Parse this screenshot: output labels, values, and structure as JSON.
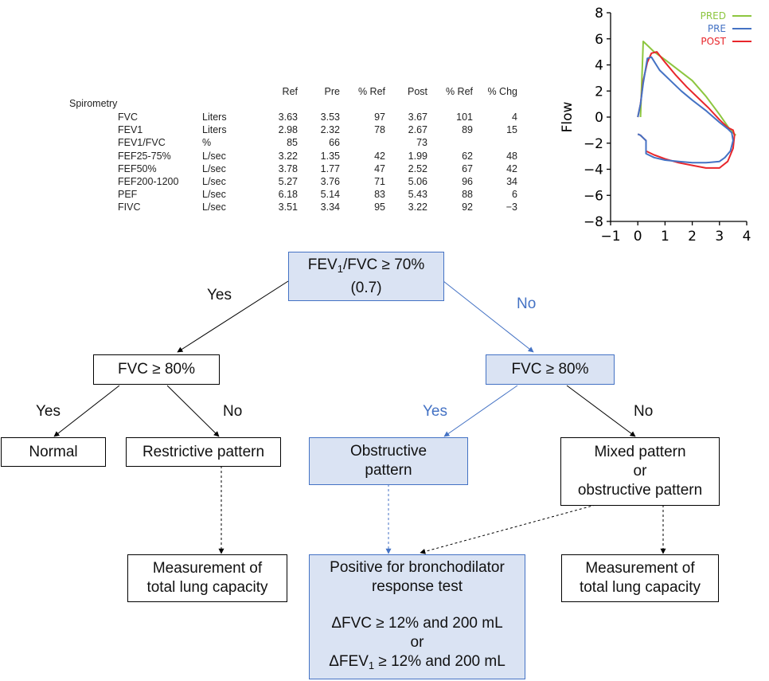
{
  "table": {
    "section_label": "Spirometry",
    "headers": [
      "Ref",
      "Pre",
      "% Ref",
      "Post",
      "% Ref",
      "% Chg"
    ],
    "rows": [
      {
        "param": "FVC",
        "unit": "Liters",
        "ref": "3.63",
        "pre": "3.53",
        "pref": "97",
        "post": "3.67",
        "postref": "101",
        "chg": "4"
      },
      {
        "param": "FEV1",
        "unit": "Liters",
        "ref": "2.98",
        "pre": "2.32",
        "pref": "78",
        "post": "2.67",
        "postref": "89",
        "chg": "15"
      },
      {
        "param": "FEV1/FVC",
        "unit": "%",
        "ref": "85",
        "pre": "66",
        "pref": "",
        "post": "73",
        "postref": "",
        "chg": ""
      },
      {
        "param": "FEF25-75%",
        "unit": "L/sec",
        "ref": "3.22",
        "pre": "1.35",
        "pref": "42",
        "post": "1.99",
        "postref": "62",
        "chg": "48"
      },
      {
        "param": "FEF50%",
        "unit": "L/sec",
        "ref": "3.78",
        "pre": "1.77",
        "pref": "47",
        "post": "2.52",
        "postref": "67",
        "chg": "42"
      },
      {
        "param": "FEF200-1200",
        "unit": "L/sec",
        "ref": "5.27",
        "pre": "3.76",
        "pref": "71",
        "post": "5.06",
        "postref": "96",
        "chg": "34"
      },
      {
        "param": "PEF",
        "unit": "L/sec",
        "ref": "6.18",
        "pre": "5.14",
        "pref": "83",
        "post": "5.43",
        "postref": "88",
        "chg": "6"
      },
      {
        "param": "FIVC",
        "unit": "L/sec",
        "ref": "3.51",
        "pre": "3.34",
        "pref": "95",
        "post": "3.22",
        "postref": "92",
        "chg": "−3"
      }
    ]
  },
  "chart_data": {
    "type": "line",
    "ylabel": "Flow",
    "xlabel": "",
    "xlim": [
      -1,
      4
    ],
    "ylim": [
      -8,
      8
    ],
    "xticks": [
      "−1",
      "0",
      "1",
      "2",
      "3",
      "4"
    ],
    "yticks": [
      "−8",
      "−6",
      "−4",
      "−2",
      "0",
      "2",
      "4",
      "6",
      "8"
    ],
    "legend_position": "top-right",
    "series": [
      {
        "name": "PRED",
        "color": "#8dc63f",
        "x": [
          0.1,
          0.2,
          0.35,
          0.6,
          1.0,
          1.5,
          2.0,
          2.5,
          3.0,
          3.4,
          3.6
        ],
        "y": [
          0,
          5.8,
          5.5,
          5.0,
          4.4,
          3.6,
          2.8,
          1.6,
          0.2,
          -1.0,
          -1.4
        ]
      },
      {
        "name": "PRE",
        "color": "#4472c4",
        "x": [
          0.0,
          0.1,
          0.2,
          0.35,
          0.5,
          0.8,
          1.2,
          1.6,
          2.0,
          2.5,
          3.0,
          3.3,
          3.45,
          3.5,
          3.4,
          3.2,
          3.0,
          2.5,
          2.0,
          1.5,
          1.0,
          0.6,
          0.3,
          0.3,
          0.2,
          0.1,
          0.0
        ],
        "y": [
          0,
          1.0,
          2.6,
          4.5,
          4.6,
          3.6,
          2.8,
          2.0,
          1.3,
          0.5,
          -0.4,
          -0.9,
          -1.2,
          -1.8,
          -2.6,
          -3.1,
          -3.4,
          -3.5,
          -3.5,
          -3.4,
          -3.3,
          -3.1,
          -2.8,
          -1.8,
          -1.6,
          -1.4,
          -1.3
        ]
      },
      {
        "name": "POST",
        "color": "#e8262b",
        "x": [
          0.0,
          0.1,
          0.2,
          0.35,
          0.5,
          0.7,
          1.0,
          1.4,
          1.8,
          2.2,
          2.6,
          3.0,
          3.3,
          3.5,
          3.55,
          3.5,
          3.3,
          3.0,
          2.5,
          2.0,
          1.5,
          1.0,
          0.6,
          0.3,
          0.3,
          0.2,
          0.1,
          0.0
        ],
        "y": [
          0,
          1.0,
          2.8,
          4.2,
          4.9,
          5.0,
          4.2,
          3.2,
          2.3,
          1.5,
          0.7,
          -0.2,
          -0.8,
          -1.0,
          -1.4,
          -2.4,
          -3.4,
          -3.9,
          -3.9,
          -3.7,
          -3.5,
          -3.2,
          -2.9,
          -2.6,
          -1.8,
          -1.6,
          -1.4,
          -1.3
        ]
      }
    ]
  },
  "flowchart": {
    "root": {
      "line1_prefix": "FEV",
      "line1_sub": "1",
      "line1_suffix": "/FVC ≥ 70%",
      "line2": "(0.7)"
    },
    "fvc_left": "FVC ≥ 80%",
    "fvc_right": "FVC ≥ 80%",
    "normal": "Normal",
    "restrictive": "Restrictive pattern",
    "obstructive": [
      "Obstructive",
      "pattern"
    ],
    "mixed": [
      "Mixed pattern",
      "or",
      "obstructive pattern"
    ],
    "tlc_left": [
      "Measurement of",
      "total lung capacity"
    ],
    "tlc_right": [
      "Measurement of",
      "total lung capacity"
    ],
    "bd_test": {
      "line1": "Positive for bronchodilator",
      "line2": "response test",
      "line3": "ΔFVC ≥ 12% and 200 mL",
      "line4": "or",
      "line5_prefix": "ΔFEV",
      "line5_sub": "1",
      "line5_suffix": " ≥ 12% and 200 mL"
    },
    "labels": {
      "root_yes": "Yes",
      "root_no": "No",
      "left_yes": "Yes",
      "left_no": "No",
      "right_yes": "Yes",
      "right_no": "No"
    }
  },
  "colors": {
    "accent_blue": "#4472c4",
    "box_blue_fill": "#dae3f3"
  }
}
